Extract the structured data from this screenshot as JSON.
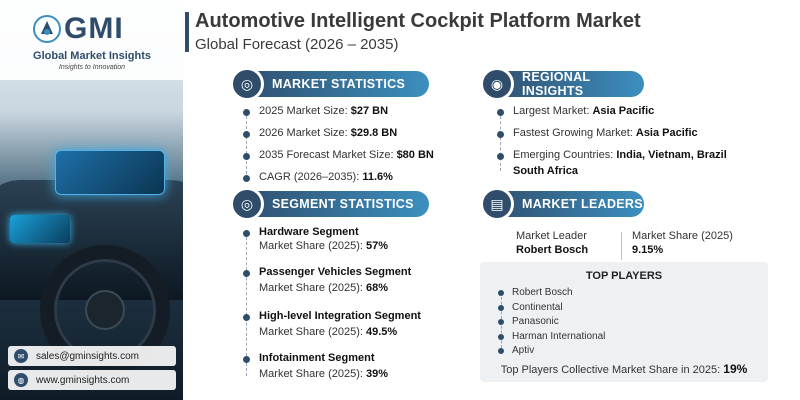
{
  "brand": {
    "logo_text": "GMI",
    "name": "Global Market Insights",
    "tagline": "Insights to Innovation"
  },
  "header": {
    "title": "Automotive Intelligent Cockpit Platform Market",
    "subtitle": "Global Forecast (2026 – 2035)"
  },
  "contact": {
    "email": "sales@gminsights.com",
    "website": "www.gminsights.com"
  },
  "market_statistics": {
    "heading": "MARKET STATISTICS",
    "items": [
      {
        "label": "2025 Market Size: ",
        "value": "$27 BN"
      },
      {
        "label": "2026 Market Size: ",
        "value": "$29.8 BN"
      },
      {
        "label": "2035 Forecast Market Size: ",
        "value": "$80 BN"
      },
      {
        "label": "CAGR (2026–2035): ",
        "value": "11.6%"
      }
    ]
  },
  "regional_insights": {
    "heading": "REGIONAL INSIGHTS",
    "items": [
      {
        "label": "Largest Market: ",
        "value": "Asia Pacific"
      },
      {
        "label": "Fastest Growing Market: ",
        "value": "Asia Pacific"
      },
      {
        "label": "Emerging Countries: ",
        "value": "India, Vietnam, Brazil",
        "value2": "South Africa"
      }
    ]
  },
  "segment_statistics": {
    "heading": "SEGMENT STATISTICS",
    "items": [
      {
        "name": "Hardware Segment",
        "label": "Market Share (2025): ",
        "value": "57%"
      },
      {
        "name": "Passenger Vehicles Segment",
        "label": "Market Share (2025): ",
        "value": "68%"
      },
      {
        "name": "High-level Integration Segment",
        "label": "Market Share (2025): ",
        "value": "49.5%"
      },
      {
        "name": "Infotainment Segment",
        "label": "Market Share (2025): ",
        "value": "39%"
      }
    ]
  },
  "market_leaders": {
    "heading": "MARKET LEADERS",
    "leader_label": "Market Leader",
    "leader_value": "Robert Bosch",
    "share_label": "Market Share (2025)",
    "share_value": "9.15%"
  },
  "top_players": {
    "heading": "TOP PLAYERS",
    "players": [
      "Robert Bosch",
      "Continental",
      "Panasonic",
      "Harman International",
      "Aptiv"
    ],
    "footer_label": "Top Players Collective Market Share in 2025: ",
    "footer_value": "19%"
  },
  "colors": {
    "primary": "#2f4d6b",
    "accent": "#3c8fc0"
  }
}
